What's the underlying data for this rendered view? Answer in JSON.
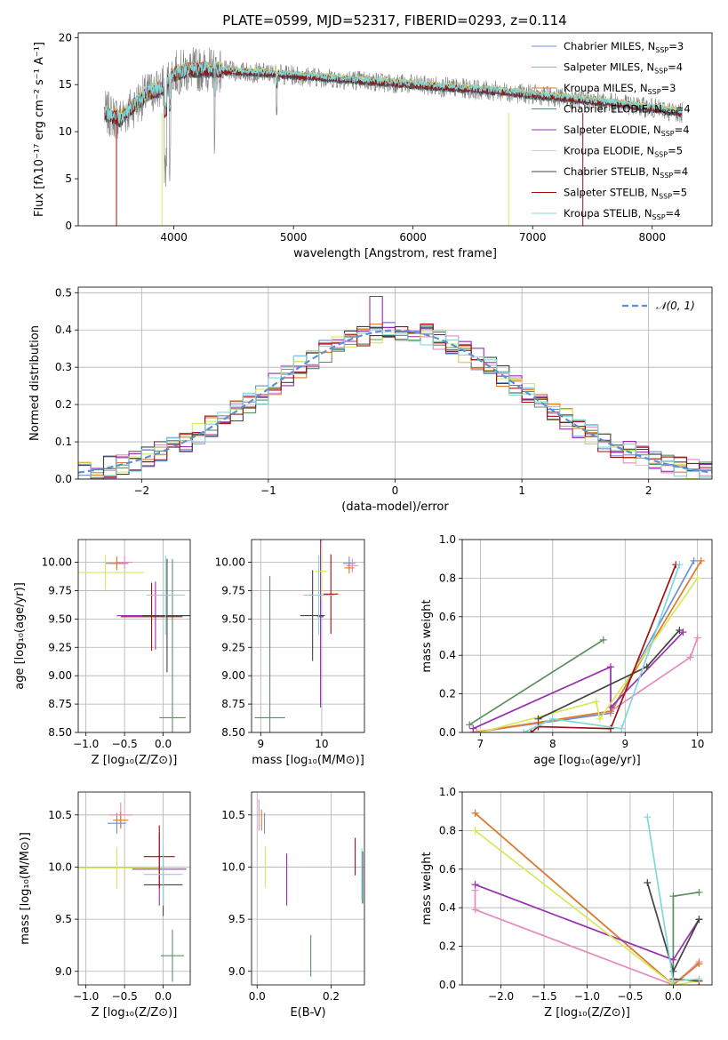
{
  "figure": {
    "title": "PLATE=0599, MJD=52317, FIBERID=0293, z=0.114"
  },
  "colors": {
    "Chabrier MILES": "#6a8fdc",
    "Salpeter MILES": "#e38bbd",
    "Kroupa MILES": "#e07b28",
    "Chabrier ELODIE": "#5f8f60",
    "Salpeter ELODIE": "#9a2fb0",
    "Kroupa ELODIE": "#d7e85c",
    "Chabrier STELIB": "#444444",
    "Salpeter STELIB": "#a01010",
    "Kroupa STELIB": "#7fd8d8",
    "data": "#808080",
    "normal": "#5b8fd6"
  },
  "chart_data": [
    {
      "id": "spectrum",
      "type": "line",
      "title": "PLATE=0599, MJD=52317, FIBERID=0293, z=0.114",
      "xlabel": "wavelength [Angstrom, rest frame]",
      "ylabel": "Flux [fλ10⁻¹⁷ erg cm⁻² s⁻¹ A⁻¹]",
      "xlim": [
        3200,
        8500
      ],
      "ylim": [
        0,
        20.5
      ],
      "xticks": [
        4000,
        5000,
        6000,
        7000,
        8000
      ],
      "yticks": [
        0,
        5,
        10,
        15,
        20
      ],
      "legend_position": "top-right",
      "legend": [
        {
          "name": "Chabrier MILES",
          "sub": "SSP",
          "val": "3"
        },
        {
          "name": "Salpeter MILES",
          "sub": "SSP",
          "val": "4"
        },
        {
          "name": "Kroupa MILES",
          "sub": "SSP",
          "val": "3"
        },
        {
          "name": "Chabrier ELODIE",
          "sub": "SSP",
          "val": "4"
        },
        {
          "name": "Salpeter ELODIE",
          "sub": "SSP",
          "val": "4"
        },
        {
          "name": "Kroupa ELODIE",
          "sub": "SSP",
          "val": "5"
        },
        {
          "name": "Chabrier STELIB",
          "sub": "SSP",
          "val": "4"
        },
        {
          "name": "Salpeter STELIB",
          "sub": "SSP",
          "val": "5"
        },
        {
          "name": "Kroupa STELIB",
          "sub": "SSP",
          "val": "4"
        }
      ],
      "continuum": {
        "x": [
          3420,
          3550,
          3700,
          3800,
          3900,
          4000,
          4150,
          4300,
          4500,
          4800,
          5000,
          5300,
          5600,
          5900,
          6200,
          6500,
          6800,
          7100,
          7400,
          7700,
          8000,
          8250
        ],
        "y": [
          12.0,
          11.4,
          13.2,
          14.2,
          14.6,
          16.2,
          16.6,
          16.6,
          16.4,
          16.2,
          16.0,
          15.7,
          15.4,
          15.1,
          14.8,
          14.5,
          14.2,
          13.8,
          13.4,
          13.0,
          12.5,
          12.0
        ]
      }
    },
    {
      "id": "residuals",
      "type": "line",
      "xlabel": "(data-model)/error",
      "ylabel": "Normed distribution",
      "xlim": [
        -2.5,
        2.5
      ],
      "ylim": [
        0,
        0.515
      ],
      "xticks": [
        -2,
        -1,
        0,
        1,
        2
      ],
      "yticks": [
        0.0,
        0.1,
        0.2,
        0.3,
        0.4,
        0.5
      ],
      "legend_label": "𝒩(0, 1)",
      "legend_position": "top-right"
    },
    {
      "id": "age-Z",
      "type": "scatter",
      "xlabel": "Z [log₁₀(Z/Z⊙)]",
      "ylabel": "age  [log₁₀(age/yr)]",
      "xlim": [
        -1.1,
        0.35
      ],
      "ylim": [
        8.5,
        10.2
      ],
      "xticks": [
        -1.0,
        -0.5,
        0.0
      ],
      "yticks": [
        8.5,
        8.75,
        9.0,
        9.25,
        9.5,
        9.75,
        10.0
      ],
      "points": [
        {
          "s": "Chabrier MILES",
          "x": -0.6,
          "y": 9.99,
          "xe": 0.15,
          "ye": 0.06
        },
        {
          "s": "Salpeter MILES",
          "x": -0.5,
          "y": 10.0,
          "xe": 0.1,
          "ye": 0.06
        },
        {
          "s": "Kroupa MILES",
          "x": -0.6,
          "y": 9.99,
          "xe": 0.1,
          "ye": 0.06
        },
        {
          "s": "Chabrier ELODIE",
          "x": 0.12,
          "y": 8.63,
          "xe": 0.17,
          "ye": 1.4
        },
        {
          "s": "Salpeter ELODIE",
          "x": -0.1,
          "y": 9.53,
          "xe": 0.5,
          "ye": 0.3
        },
        {
          "s": "Kroupa ELODIE",
          "x": -0.75,
          "y": 9.91,
          "xe": 0.5,
          "ye": 0.15
        },
        {
          "s": "Chabrier STELIB",
          "x": 0.05,
          "y": 9.53,
          "xe": 0.32,
          "ye": 0.5
        },
        {
          "s": "Salpeter STELIB",
          "x": -0.15,
          "y": 9.52,
          "xe": 0.4,
          "ye": 0.3
        },
        {
          "s": "Kroupa STELIB",
          "x": 0.03,
          "y": 9.71,
          "xe": 0.25,
          "ye": 0.35
        }
      ]
    },
    {
      "id": "age-mass",
      "type": "scatter",
      "xlabel": "mass [log₁₀(M/M⊙)]",
      "xlim": [
        8.85,
        10.7
      ],
      "ylim": [
        8.5,
        10.2
      ],
      "xticks": [
        9,
        10
      ],
      "yticks": [
        8.5,
        8.75,
        9.0,
        9.25,
        9.5,
        9.75,
        10.0
      ],
      "points": [
        {
          "s": "Chabrier MILES",
          "x": 10.45,
          "y": 9.99,
          "xe": 0.1,
          "ye": 0.06
        },
        {
          "s": "Salpeter MILES",
          "x": 10.5,
          "y": 9.97,
          "xe": 0.1,
          "ye": 0.06
        },
        {
          "s": "Kroupa MILES",
          "x": 10.45,
          "y": 9.95,
          "xe": 0.08,
          "ye": 0.05
        },
        {
          "s": "Chabrier ELODIE",
          "x": 9.15,
          "y": 8.63,
          "xe": 0.25,
          "ye": 1.25
        },
        {
          "s": "Salpeter ELODIE",
          "x": 9.98,
          "y": 9.52,
          "xe": 0.05,
          "ye": 0.8
        },
        {
          "s": "Kroupa ELODIE",
          "x": 10.0,
          "y": 9.92,
          "xe": 0.1,
          "ye": 0.25
        },
        {
          "s": "Chabrier STELIB",
          "x": 9.85,
          "y": 9.53,
          "xe": 0.2,
          "ye": 0.4
        },
        {
          "s": "Salpeter STELIB",
          "x": 10.15,
          "y": 9.72,
          "xe": 0.12,
          "ye": 0.35
        },
        {
          "s": "Kroupa STELIB",
          "x": 9.95,
          "y": 9.71,
          "xe": 0.25,
          "ye": 0.35
        }
      ]
    },
    {
      "id": "weight-age",
      "type": "line",
      "xlabel": "age  [log₁₀(age/yr)]",
      "ylabel": "mass weight",
      "xlim": [
        6.75,
        10.2
      ],
      "ylim": [
        0,
        1.0
      ],
      "xticks": [
        7,
        8,
        9,
        10
      ],
      "yticks": [
        0.0,
        0.2,
        0.4,
        0.6,
        0.8,
        1.0
      ],
      "series": [
        {
          "s": "Chabrier MILES",
          "x": [
            6.9,
            8.8,
            9.95
          ],
          "y": [
            0.0,
            0.1,
            0.89
          ]
        },
        {
          "s": "Salpeter MILES",
          "x": [
            6.95,
            8.8,
            9.9,
            10.0
          ],
          "y": [
            0.0,
            0.11,
            0.39,
            0.49
          ]
        },
        {
          "s": "Kroupa MILES",
          "x": [
            6.9,
            8.8,
            10.05
          ],
          "y": [
            0.0,
            0.11,
            0.89
          ]
        },
        {
          "s": "Chabrier ELODIE",
          "x": [
            6.85,
            8.7
          ],
          "y": [
            0.04,
            0.48
          ]
        },
        {
          "s": "Salpeter ELODIE",
          "x": [
            6.9,
            8.8,
            8.8,
            9.8
          ],
          "y": [
            0.02,
            0.34,
            0.13,
            0.52
          ]
        },
        {
          "s": "Kroupa ELODIE",
          "x": [
            7.0,
            8.6,
            8.65,
            10.0
          ],
          "y": [
            0.0,
            0.16,
            0.07,
            0.8
          ]
        },
        {
          "s": "Chabrier STELIB",
          "x": [
            7.8,
            9.3,
            9.75
          ],
          "y": [
            0.07,
            0.34,
            0.53
          ]
        },
        {
          "s": "Salpeter STELIB",
          "x": [
            7.7,
            7.8,
            8.8,
            9.7
          ],
          "y": [
            0.0,
            0.03,
            0.02,
            0.87
          ]
        },
        {
          "s": "Kroupa STELIB",
          "x": [
            7.6,
            8.0,
            8.95,
            9.75
          ],
          "y": [
            0.0,
            0.07,
            0.02,
            0.87
          ]
        }
      ]
    },
    {
      "id": "mass-Z",
      "type": "scatter",
      "xlabel": "Z [log₁₀(Z/Z⊙)]",
      "ylabel": "mass [log₁₀(M/M⊙)]",
      "xlim": [
        -1.1,
        0.35
      ],
      "ylim": [
        8.87,
        10.72
      ],
      "xticks": [
        -1.0,
        -0.5,
        0.0
      ],
      "yticks": [
        9.0,
        9.5,
        10.0,
        10.5
      ],
      "points": [
        {
          "s": "Chabrier MILES",
          "x": -0.6,
          "y": 10.42,
          "xe": 0.12,
          "ye": 0.1
        },
        {
          "s": "Salpeter MILES",
          "x": -0.55,
          "y": 10.5,
          "xe": 0.15,
          "ye": 0.12
        },
        {
          "s": "Kroupa MILES",
          "x": -0.55,
          "y": 10.45,
          "xe": 0.1,
          "ye": 0.08
        },
        {
          "s": "Chabrier ELODIE",
          "x": 0.12,
          "y": 9.15,
          "xe": 0.15,
          "ye": 0.25
        },
        {
          "s": "Salpeter ELODIE",
          "x": -0.05,
          "y": 9.98,
          "xe": 0.35,
          "ye": 0.35
        },
        {
          "s": "Kroupa ELODIE",
          "x": -0.6,
          "y": 9.99,
          "xe": 0.55,
          "ye": 0.2
        },
        {
          "s": "Chabrier STELIB",
          "x": 0.0,
          "y": 9.83,
          "xe": 0.25,
          "ye": 0.3
        },
        {
          "s": "Salpeter STELIB",
          "x": -0.05,
          "y": 10.1,
          "xe": 0.2,
          "ye": 0.3
        },
        {
          "s": "Kroupa STELIB",
          "x": 0.0,
          "y": 9.93,
          "xe": 0.25,
          "ye": 0.3
        }
      ]
    },
    {
      "id": "mass-ebv",
      "type": "scatter",
      "xlabel": "E(B-V)",
      "xlim": [
        -0.015,
        0.29
      ],
      "ylim": [
        8.87,
        10.72
      ],
      "xticks": [
        0.0,
        0.2
      ],
      "yticks": [
        9.0,
        9.5,
        10.0,
        10.5
      ],
      "points": [
        {
          "s": "Chabrier MILES",
          "x": 0.02,
          "y": 10.42,
          "ye": 0.1
        },
        {
          "s": "Salpeter MILES",
          "x": 0.005,
          "y": 10.5,
          "ye": 0.15
        },
        {
          "s": "Kroupa MILES",
          "x": 0.012,
          "y": 10.45,
          "ye": 0.1
        },
        {
          "s": "Chabrier ELODIE",
          "x": 0.145,
          "y": 9.15,
          "ye": 0.2
        },
        {
          "s": "Salpeter ELODIE",
          "x": 0.08,
          "y": 9.88,
          "ye": 0.25
        },
        {
          "s": "Kroupa ELODIE",
          "x": 0.022,
          "y": 10.0,
          "ye": 0.2
        },
        {
          "s": "Chabrier STELIB",
          "x": 0.285,
          "y": 9.9,
          "ye": 0.25
        },
        {
          "s": "Salpeter STELIB",
          "x": 0.265,
          "y": 10.1,
          "ye": 0.18
        },
        {
          "s": "Kroupa STELIB",
          "x": 0.283,
          "y": 9.93,
          "ye": 0.25
        }
      ]
    },
    {
      "id": "weight-Z",
      "type": "line",
      "xlabel": "Z [log₁₀(Z/Z⊙)]",
      "ylabel": "mass weight",
      "xlim": [
        -2.45,
        0.45
      ],
      "ylim": [
        0,
        1.0
      ],
      "xticks": [
        -2.0,
        -1.5,
        -1.0,
        -0.5,
        0.0
      ],
      "yticks": [
        0.0,
        0.2,
        0.4,
        0.6,
        0.8,
        1.0
      ],
      "series": [
        {
          "s": "Chabrier MILES",
          "x": [
            -2.3,
            0.0,
            0.3
          ],
          "y": [
            0.89,
            0.0,
            0.11
          ]
        },
        {
          "s": "Salpeter MILES",
          "x": [
            -2.3,
            -2.3,
            0.0,
            0.3
          ],
          "y": [
            0.49,
            0.39,
            0.0,
            0.12
          ]
        },
        {
          "s": "Kroupa MILES",
          "x": [
            -2.3,
            0.0,
            0.3
          ],
          "y": [
            0.89,
            0.0,
            0.11
          ]
        },
        {
          "s": "Chabrier ELODIE",
          "x": [
            0.0,
            0.0,
            0.3
          ],
          "y": [
            0.0,
            0.46,
            0.48
          ]
        },
        {
          "s": "Salpeter ELODIE",
          "x": [
            -2.3,
            0.0,
            0.3
          ],
          "y": [
            0.52,
            0.13,
            0.34
          ]
        },
        {
          "s": "Kroupa ELODIE",
          "x": [
            -2.3,
            0.0,
            0.3
          ],
          "y": [
            0.8,
            0.0,
            0.02
          ]
        },
        {
          "s": "Chabrier STELIB",
          "x": [
            -0.3,
            0.0,
            0.3
          ],
          "y": [
            0.53,
            0.07,
            0.34
          ]
        },
        {
          "s": "Salpeter STELIB",
          "x": [
            0.0,
            0.3
          ],
          "y": [
            0.03,
            0.02
          ]
        },
        {
          "s": "Kroupa STELIB",
          "x": [
            -0.3,
            0.0,
            0.3
          ],
          "y": [
            0.87,
            0.02,
            0.03
          ]
        }
      ]
    }
  ]
}
